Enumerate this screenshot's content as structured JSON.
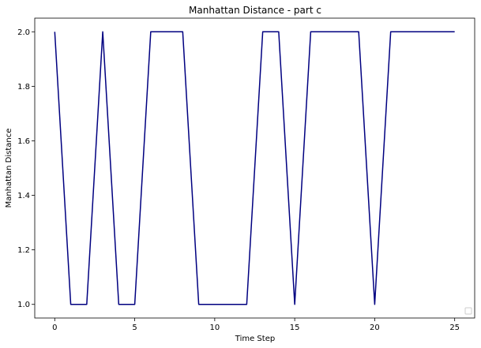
{
  "chart_data": {
    "type": "line",
    "title": "Manhattan Distance - part c",
    "xlabel": "Time Step",
    "ylabel": "Manhattan Distance",
    "xlim": [
      -1.25,
      26.25
    ],
    "ylim": [
      0.95,
      2.05
    ],
    "xticks": [
      0,
      5,
      10,
      15,
      20,
      25
    ],
    "yticks": [
      1.0,
      1.2,
      1.4,
      1.6,
      1.8,
      2.0
    ],
    "grid": false,
    "legend": "bottom-right (empty)",
    "series": [
      {
        "color": "#000080",
        "x": [
          0,
          1,
          2,
          3,
          4,
          5,
          6,
          7,
          8,
          9,
          10,
          11,
          12,
          13,
          14,
          15,
          16,
          17,
          18,
          19,
          20,
          21,
          22,
          23,
          24,
          25
        ],
        "y": [
          2.0,
          1.0,
          1.0,
          2.0,
          1.0,
          1.0,
          2.0,
          2.0,
          2.0,
          1.0,
          1.0,
          1.0,
          1.0,
          2.0,
          2.0,
          1.0,
          2.0,
          2.0,
          2.0,
          2.0,
          1.0,
          2.0,
          2.0,
          2.0,
          2.0,
          2.0
        ]
      }
    ]
  }
}
